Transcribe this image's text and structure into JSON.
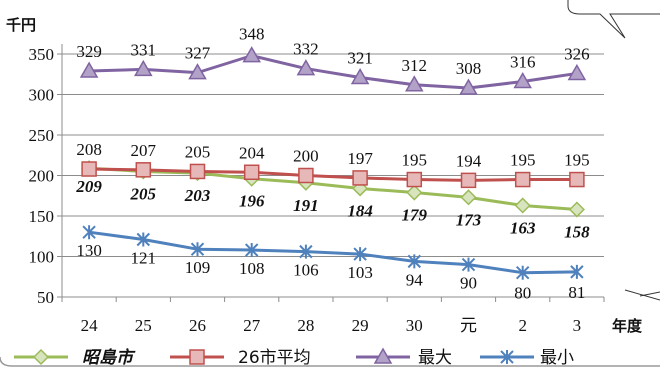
{
  "chart_data": {
    "type": "line",
    "y_unit": "千円",
    "x_unit": "年度",
    "categories": [
      "24",
      "25",
      "26",
      "27",
      "28",
      "29",
      "30",
      "元",
      "2",
      "3"
    ],
    "ylim": [
      50,
      350
    ],
    "yticks": [
      50,
      100,
      150,
      200,
      250,
      300,
      350
    ],
    "grid": true,
    "legend_position": "bottom",
    "series": [
      {
        "name": "昭島市",
        "values": [
          209,
          205,
          203,
          196,
          191,
          184,
          179,
          173,
          163,
          158
        ],
        "color": "#9bbb59",
        "marker": "diamond",
        "label_style": "bold-italic"
      },
      {
        "name": "26市平均",
        "values": [
          208,
          207,
          205,
          204,
          200,
          197,
          195,
          194,
          195,
          195
        ],
        "color": "#c0504d",
        "marker": "square",
        "label_style": "normal"
      },
      {
        "name": "最大",
        "values": [
          329,
          331,
          327,
          348,
          332,
          321,
          312,
          308,
          316,
          326
        ],
        "color": "#8064a2",
        "marker": "triangle",
        "label_style": "normal"
      },
      {
        "name": "最小",
        "values": [
          130,
          121,
          109,
          108,
          106,
          103,
          94,
          90,
          80,
          81
        ],
        "color": "#4f81bd",
        "marker": "asterisk",
        "label_style": "normal"
      }
    ]
  }
}
